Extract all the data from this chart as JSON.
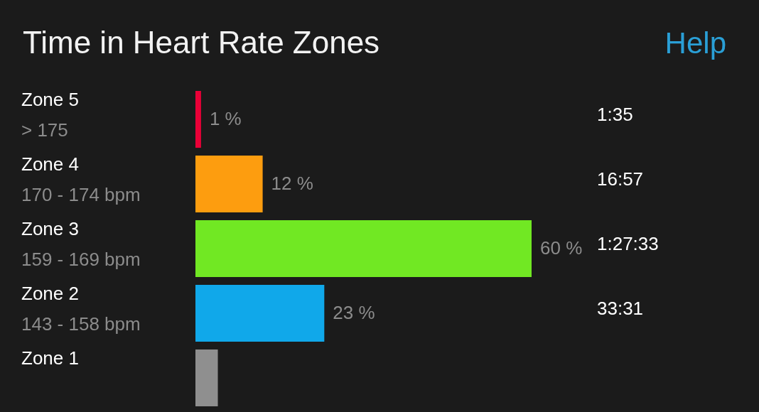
{
  "chart_data": {
    "type": "bar",
    "orientation": "horizontal",
    "title": "Time in Heart Rate Zones",
    "categories": [
      "Zone 5",
      "Zone 4",
      "Zone 3",
      "Zone 2",
      "Zone 1"
    ],
    "values": [
      1,
      12,
      60,
      23,
      4
    ],
    "colors": [
      "#ea0037",
      "#fd9d0f",
      "#71e823",
      "#10a8ea",
      "#8f8f8f"
    ],
    "value_labels": [
      "1 %",
      "12 %",
      "60 %",
      "23 %",
      null
    ],
    "annotations": [
      "Help",
      "> 175",
      "1:35",
      "170 - 174 bpm",
      "16:57",
      "159 - 169 bpm",
      "1:27:33",
      "143 - 158 bpm",
      "33:31"
    ]
  }
}
